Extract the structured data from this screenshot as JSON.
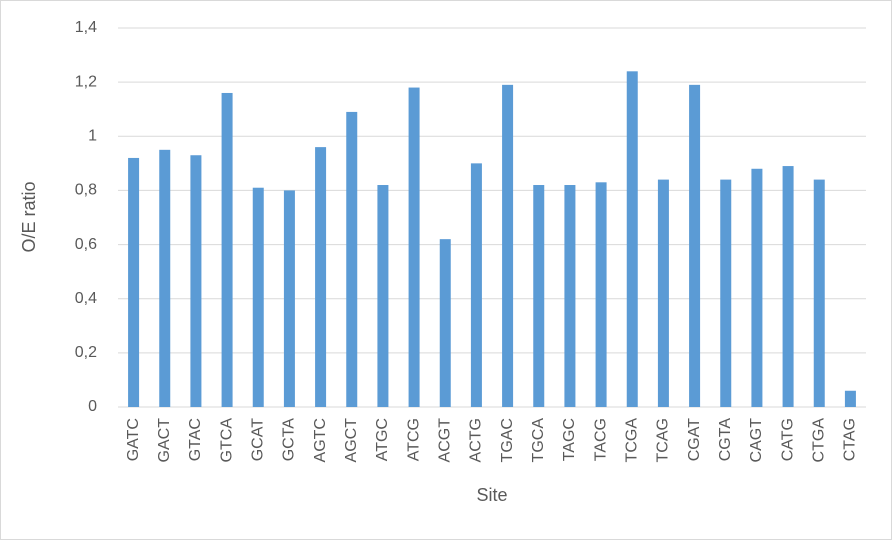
{
  "chart_data": {
    "type": "bar",
    "categories": [
      "GATC",
      "GACT",
      "GTAC",
      "GTCA",
      "GCAT",
      "GCTA",
      "AGTC",
      "AGCT",
      "ATGC",
      "ATCG",
      "ACGT",
      "ACTG",
      "TGAC",
      "TGCA",
      "TAGC",
      "TACG",
      "TCGA",
      "TCAG",
      "CGAT",
      "CGTA",
      "CAGT",
      "CATG",
      "CTGA",
      "CTAG"
    ],
    "values": [
      0.92,
      0.95,
      0.93,
      1.16,
      0.81,
      0.8,
      0.96,
      1.09,
      0.82,
      1.18,
      0.62,
      0.9,
      1.19,
      0.82,
      0.82,
      0.83,
      1.24,
      0.84,
      1.19,
      0.84,
      0.88,
      0.89,
      0.84,
      0.06
    ],
    "color": "#5b9bd5",
    "x_label": "Site",
    "y_label": "O/E ratio",
    "ylim": [
      0,
      1.4
    ],
    "yticks": [
      0,
      {
        "value": 0.2,
        "label": "0,2"
      },
      {
        "value": 0.4,
        "label": "0,4"
      },
      {
        "value": 0.6,
        "label": "0,6"
      },
      {
        "value": 0.8,
        "label": "0,8"
      },
      1,
      {
        "value": 1.2,
        "label": "1,2"
      },
      {
        "value": 1.4,
        "label": "1,4"
      }
    ],
    "grid": true
  }
}
